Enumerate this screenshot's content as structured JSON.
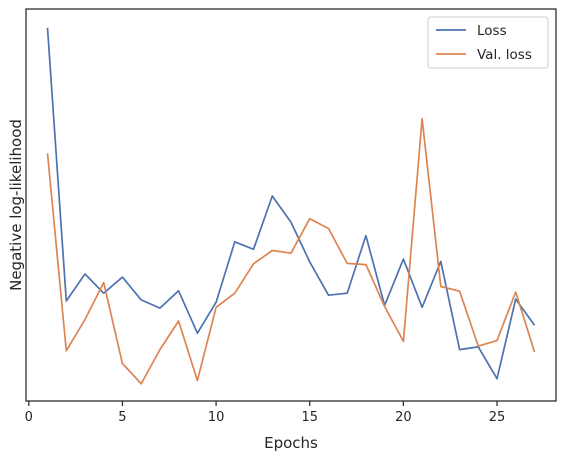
{
  "chart_data": {
    "type": "line",
    "xlabel": "Epochs",
    "ylabel": "Negative log-likelihood",
    "xlim": [
      -0.15,
      28.15
    ],
    "ylim": [
      0,
      100
    ],
    "x_ticks": [
      0,
      5,
      10,
      15,
      20,
      25
    ],
    "y_ticks_shown": false,
    "grid": false,
    "legend_position": "top-right",
    "x": [
      1,
      2,
      3,
      4,
      5,
      6,
      7,
      8,
      9,
      10,
      11,
      12,
      13,
      14,
      15,
      16,
      17,
      18,
      19,
      20,
      21,
      22,
      23,
      24,
      25,
      26,
      27
    ],
    "series": [
      {
        "name": "Loss",
        "color": "#4c72b0",
        "values": [
          95.2,
          25.5,
          32.4,
          27.5,
          31.6,
          25.8,
          23.7,
          28.1,
          17.3,
          25.2,
          40.6,
          38.7,
          52.3,
          45.6,
          35.5,
          27.0,
          27.5,
          42.2,
          24.4,
          36.2,
          23.9,
          35.6,
          13.1,
          13.8,
          5.7,
          26.0,
          19.3
        ]
      },
      {
        "name": "Val. loss",
        "color": "#dd8452",
        "values": [
          63.2,
          12.8,
          20.8,
          30.2,
          9.6,
          4.4,
          13.1,
          20.4,
          5.2,
          23.9,
          27.5,
          35.0,
          38.4,
          37.7,
          46.5,
          44.0,
          35.1,
          34.8,
          24.1,
          15.2,
          72.0,
          29.2,
          28.0,
          14.0,
          15.4,
          27.8,
          12.5
        ]
      }
    ]
  }
}
